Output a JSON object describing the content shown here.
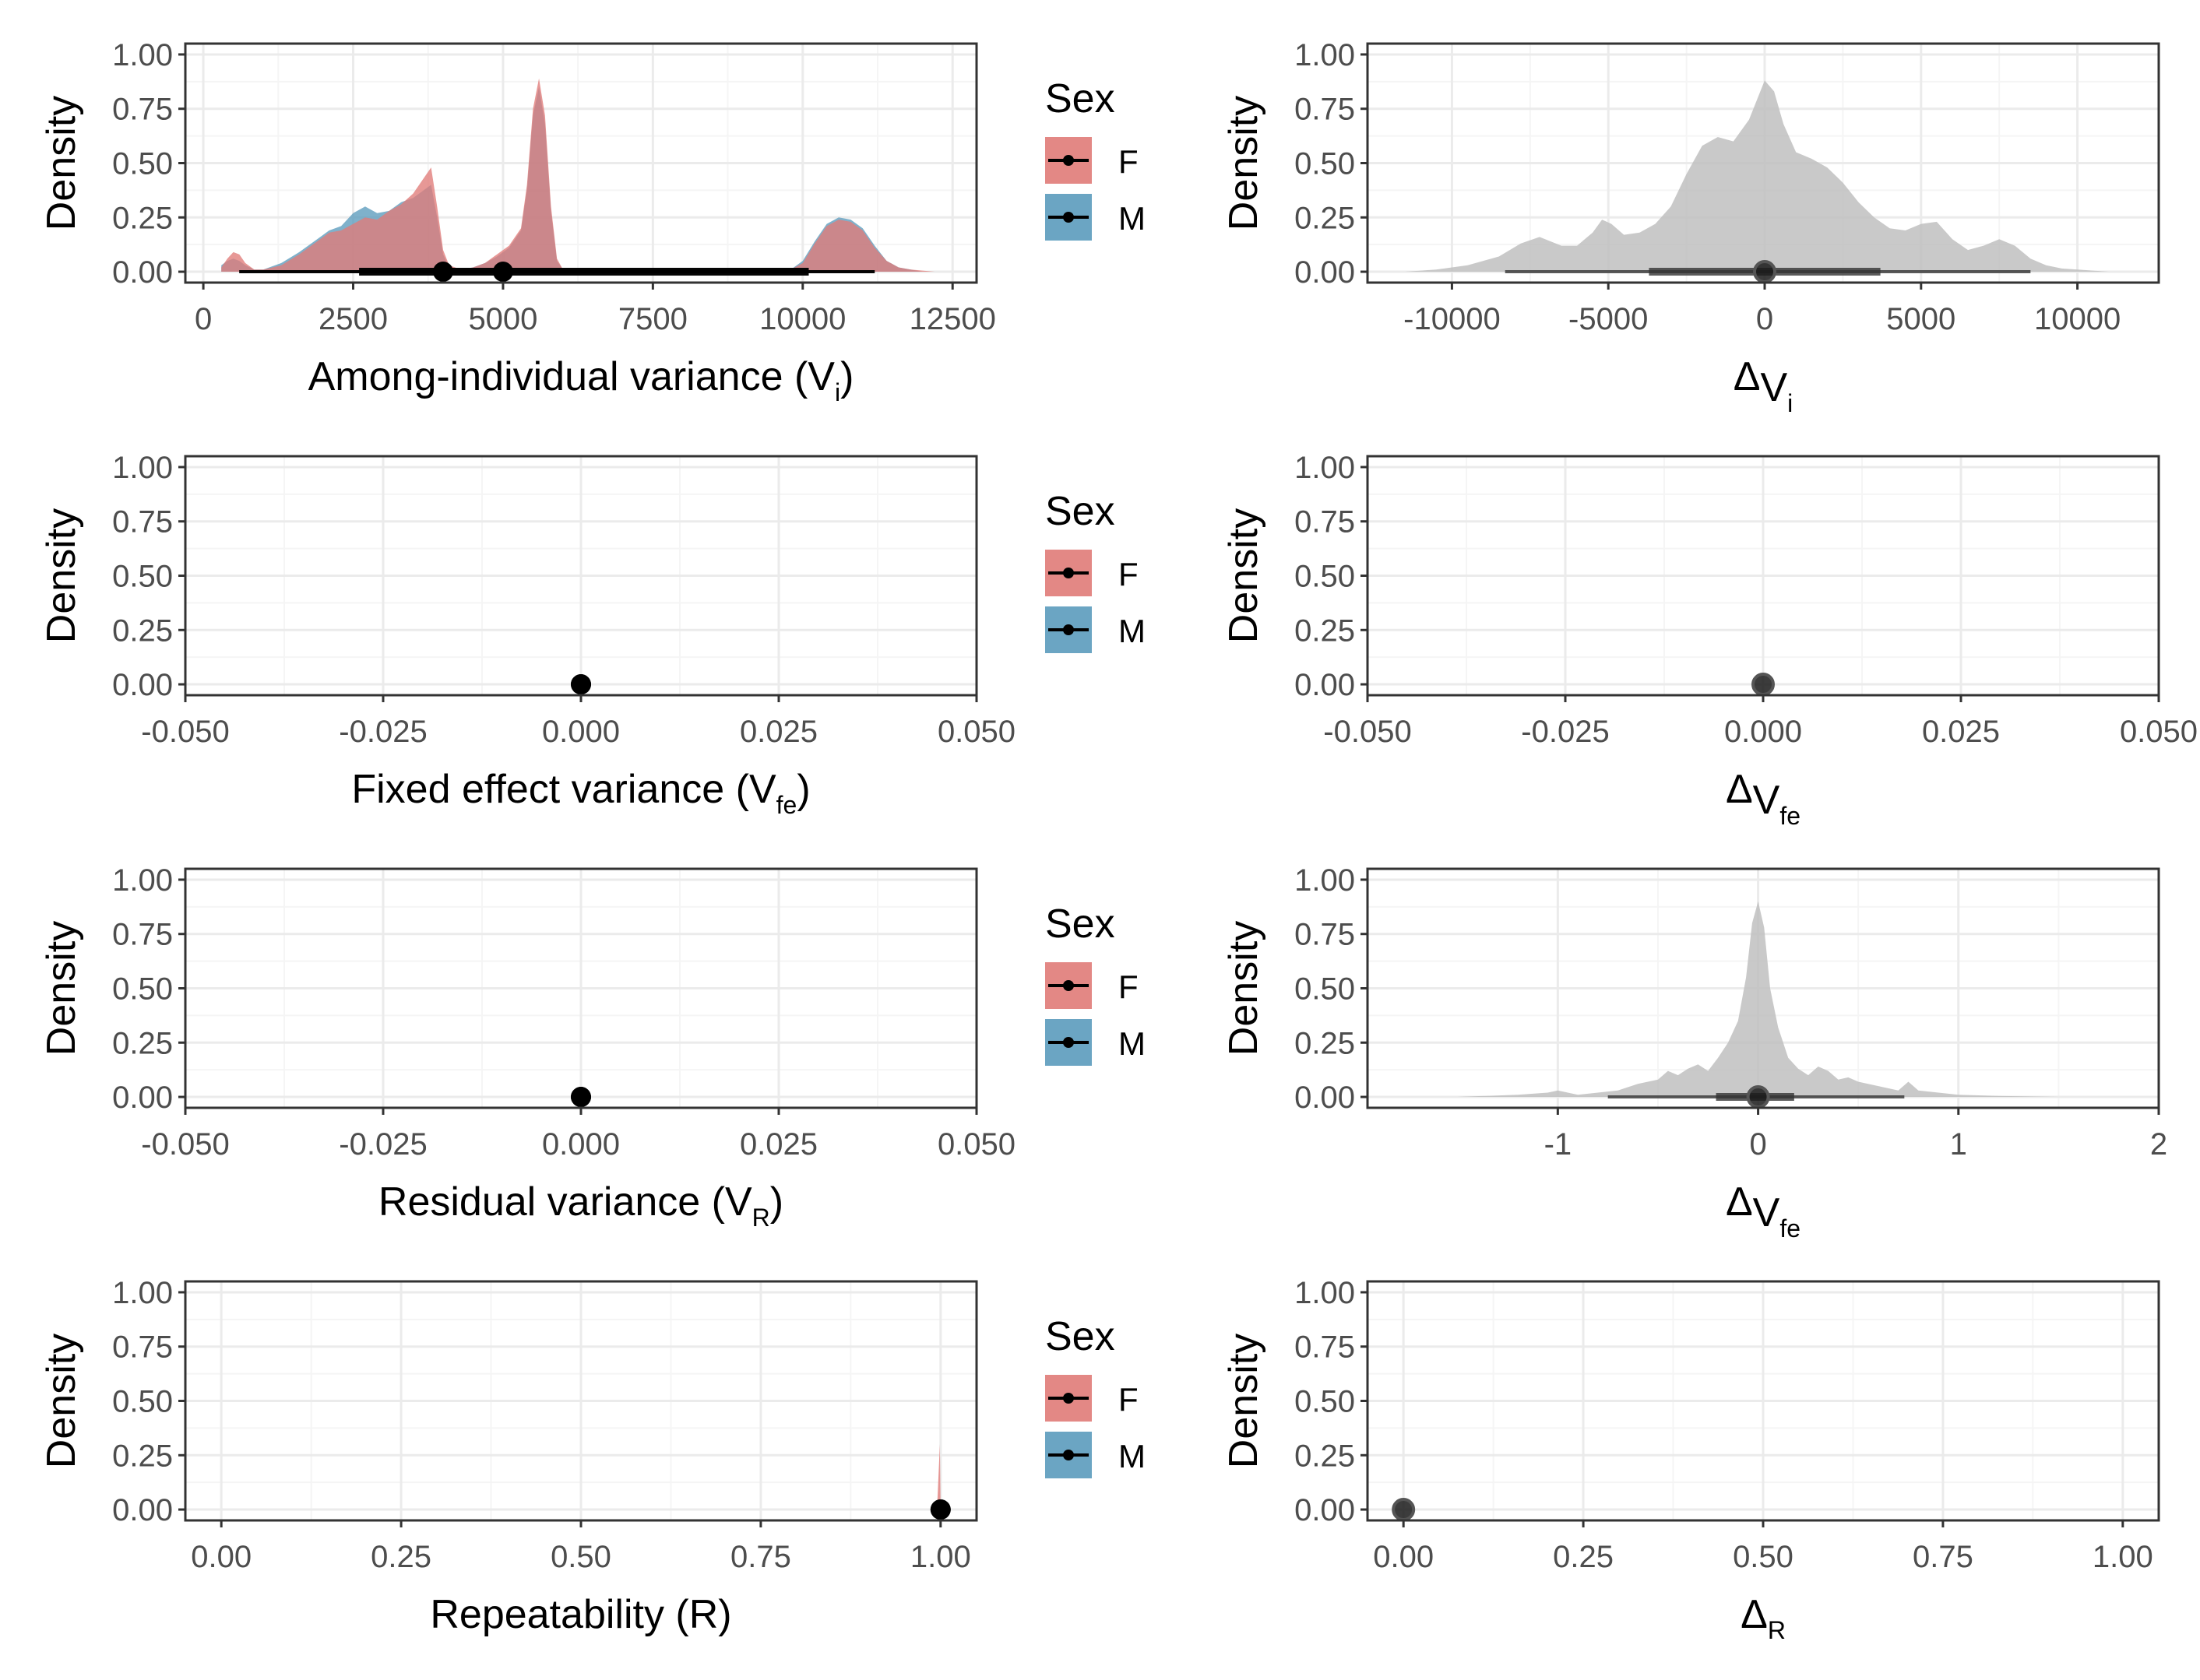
{
  "figure": {
    "y_axis_title": "Density",
    "legend": {
      "title": "Sex",
      "entries": [
        "F",
        "M"
      ]
    }
  },
  "colors": {
    "F": "#E07B78",
    "M": "#5B9BBC",
    "delta_fill": "#BDBDBD",
    "grid_major": "#EBEBEB",
    "grid_minor": "#F5F5F5",
    "panel_border": "#333333"
  },
  "chart_data": [
    {
      "id": "vi",
      "type": "area",
      "xlabel": {
        "main": "Among-individual variance (V",
        "sub": "i",
        "suffix": ")"
      },
      "ylabel": "Density",
      "xlim": [
        -300,
        12900
      ],
      "ylim": [
        -0.05,
        1.05
      ],
      "xticks": [
        0,
        2500,
        5000,
        7500,
        10000,
        12500
      ],
      "xtick_labels": [
        "0",
        "2500",
        "5000",
        "7500",
        "10000",
        "12500"
      ],
      "yticks": [
        0,
        0.25,
        0.5,
        0.75,
        1.0
      ],
      "ytick_labels": [
        "0.00",
        "0.25",
        "0.50",
        "0.75",
        "1.00"
      ],
      "legend": "right",
      "series": [
        {
          "name": "F",
          "x": [
            300,
            400,
            500,
            600,
            700,
            850,
            1000,
            1300,
            1600,
            1900,
            2100,
            2300,
            2500,
            2700,
            2900,
            3100,
            3300,
            3500,
            3700,
            3800,
            3900,
            4000,
            4100,
            4300,
            4500,
            4700,
            4900,
            5100,
            5300,
            5400,
            5500,
            5600,
            5700,
            5800,
            5900,
            6000,
            6200,
            7000,
            8000,
            9000,
            9800,
            10000,
            10200,
            10400,
            10600,
            10800,
            11000,
            11200,
            11400,
            11600,
            11800,
            12000,
            12200,
            12400,
            12500
          ],
          "y": [
            0.02,
            0.06,
            0.09,
            0.08,
            0.04,
            0.01,
            0.01,
            0.03,
            0.08,
            0.14,
            0.18,
            0.19,
            0.22,
            0.25,
            0.24,
            0.28,
            0.31,
            0.36,
            0.44,
            0.48,
            0.3,
            0.1,
            0.03,
            0.01,
            0.02,
            0.04,
            0.08,
            0.12,
            0.2,
            0.4,
            0.75,
            0.89,
            0.72,
            0.3,
            0.06,
            0.01,
            0.0,
            0.0,
            0.0,
            0.0,
            0.01,
            0.04,
            0.13,
            0.21,
            0.24,
            0.23,
            0.19,
            0.11,
            0.05,
            0.02,
            0.01,
            0.005,
            0.0,
            0.0,
            0.0
          ],
          "interval_point": 5000,
          "interval_inner": [
            2600,
            10100
          ],
          "interval_outer": [
            600,
            11200
          ]
        },
        {
          "name": "M",
          "x": [
            300,
            400,
            500,
            600,
            700,
            850,
            1000,
            1300,
            1600,
            1900,
            2100,
            2300,
            2500,
            2700,
            2900,
            3100,
            3300,
            3500,
            3700,
            3800,
            3900,
            4000,
            4100,
            4300,
            4500,
            4700,
            4900,
            5100,
            5300,
            5400,
            5500,
            5600,
            5700,
            5800,
            5900,
            6000,
            6200,
            7000,
            8000,
            9000,
            9800,
            10000,
            10200,
            10400,
            10600,
            10800,
            11000,
            11200,
            11400,
            11600,
            11800,
            12000
          ],
          "y": [
            0.03,
            0.05,
            0.06,
            0.05,
            0.03,
            0.01,
            0.01,
            0.04,
            0.09,
            0.15,
            0.19,
            0.21,
            0.27,
            0.3,
            0.27,
            0.28,
            0.32,
            0.34,
            0.38,
            0.4,
            0.25,
            0.08,
            0.02,
            0.01,
            0.02,
            0.04,
            0.07,
            0.11,
            0.19,
            0.38,
            0.72,
            0.85,
            0.68,
            0.28,
            0.05,
            0.01,
            0.0,
            0.0,
            0.0,
            0.0,
            0.01,
            0.05,
            0.14,
            0.22,
            0.25,
            0.24,
            0.2,
            0.12,
            0.05,
            0.02,
            0.01,
            0.0
          ],
          "interval_point": 4000,
          "interval_inner": [
            2600,
            10100
          ],
          "interval_outer": [
            600,
            11200
          ]
        }
      ]
    },
    {
      "id": "delta_vi",
      "type": "area",
      "xlabel": {
        "main": "Δ",
        "sub_main": "V",
        "sub": "i",
        "suffix": ""
      },
      "ylabel": "Density",
      "xlim": [
        -12700,
        12600
      ],
      "ylim": [
        -0.05,
        1.05
      ],
      "xticks": [
        -10000,
        -5000,
        0,
        5000,
        10000
      ],
      "xtick_labels": [
        "-10000",
        "-5000",
        "0",
        "5000",
        "10000"
      ],
      "yticks": [
        0,
        0.25,
        0.5,
        0.75,
        1.0
      ],
      "ytick_labels": [
        "0.00",
        "0.25",
        "0.50",
        "0.75",
        "1.00"
      ],
      "series": [
        {
          "x": [
            -11500,
            -10500,
            -9500,
            -8500,
            -7800,
            -7200,
            -6500,
            -6000,
            -5500,
            -5200,
            -4900,
            -4500,
            -4000,
            -3500,
            -3000,
            -2500,
            -2000,
            -1500,
            -1000,
            -500,
            0,
            300,
            600,
            1000,
            1500,
            2000,
            2500,
            3000,
            3500,
            4000,
            4500,
            5000,
            5500,
            6000,
            6500,
            7000,
            7500,
            8000,
            8500,
            9000,
            9500,
            10000,
            10500,
            11000
          ],
          "y": [
            0.0,
            0.01,
            0.03,
            0.07,
            0.13,
            0.16,
            0.12,
            0.12,
            0.18,
            0.24,
            0.22,
            0.17,
            0.18,
            0.22,
            0.3,
            0.45,
            0.58,
            0.62,
            0.6,
            0.7,
            0.88,
            0.83,
            0.68,
            0.55,
            0.52,
            0.48,
            0.41,
            0.32,
            0.25,
            0.2,
            0.19,
            0.22,
            0.23,
            0.15,
            0.1,
            0.12,
            0.15,
            0.12,
            0.06,
            0.03,
            0.015,
            0.01,
            0.005,
            0.0
          ],
          "interval_point": 0,
          "interval_inner": [
            -3700,
            3700
          ],
          "interval_outer": [
            -8300,
            8500
          ]
        }
      ]
    },
    {
      "id": "vfe",
      "type": "area",
      "xlabel": {
        "main": "Fixed effect variance (V",
        "sub": "fe",
        "suffix": ")"
      },
      "ylabel": "Density",
      "xlim": [
        -0.05,
        0.05
      ],
      "ylim": [
        -0.05,
        1.05
      ],
      "xticks": [
        -0.05,
        -0.025,
        0,
        0.025,
        0.05
      ],
      "xtick_labels": [
        "-0.050",
        "-0.025",
        "0.000",
        "0.025",
        "0.050"
      ],
      "yticks": [
        0,
        0.25,
        0.5,
        0.75,
        1.0
      ],
      "ytick_labels": [
        "0.00",
        "0.25",
        "0.50",
        "0.75",
        "1.00"
      ],
      "legend": "right",
      "series": [
        {
          "name": "F",
          "x": [],
          "y": [],
          "interval_point": 0,
          "interval_inner": [
            0,
            0
          ],
          "interval_outer": [
            0,
            0
          ]
        },
        {
          "name": "M",
          "x": [],
          "y": [],
          "interval_point": 0,
          "interval_inner": [
            0,
            0
          ],
          "interval_outer": [
            0,
            0
          ]
        }
      ]
    },
    {
      "id": "delta_vfe",
      "type": "area",
      "xlabel": {
        "main": "Δ",
        "sub_main": "V",
        "sub": "fe",
        "suffix": ""
      },
      "ylabel": "Density",
      "xlim": [
        -0.05,
        0.05
      ],
      "ylim": [
        -0.05,
        1.05
      ],
      "xticks": [
        -0.05,
        -0.025,
        0,
        0.025,
        0.05
      ],
      "xtick_labels": [
        "-0.050",
        "-0.025",
        "0.000",
        "0.025",
        "0.050"
      ],
      "yticks": [
        0,
        0.25,
        0.5,
        0.75,
        1.0
      ],
      "ytick_labels": [
        "0.00",
        "0.25",
        "0.50",
        "0.75",
        "1.00"
      ],
      "series": [
        {
          "x": [],
          "y": [],
          "interval_point": 0,
          "interval_inner": [
            0,
            0
          ],
          "interval_outer": [
            0,
            0
          ]
        }
      ]
    },
    {
      "id": "vr",
      "type": "area",
      "xlabel": {
        "main": "Residual variance (V",
        "sub": "R",
        "suffix": ")"
      },
      "ylabel": "Density",
      "xlim": [
        -0.05,
        0.05
      ],
      "ylim": [
        -0.05,
        1.05
      ],
      "xticks": [
        -0.05,
        -0.025,
        0,
        0.025,
        0.05
      ],
      "xtick_labels": [
        "-0.050",
        "-0.025",
        "0.000",
        "0.025",
        "0.050"
      ],
      "yticks": [
        0,
        0.25,
        0.5,
        0.75,
        1.0
      ],
      "ytick_labels": [
        "0.00",
        "0.25",
        "0.50",
        "0.75",
        "1.00"
      ],
      "legend": "right",
      "series": [
        {
          "name": "F",
          "x": [],
          "y": [],
          "interval_point": 0,
          "interval_inner": [
            0,
            0
          ],
          "interval_outer": [
            0,
            0
          ]
        },
        {
          "name": "M",
          "x": [],
          "y": [],
          "interval_point": 0,
          "interval_inner": [
            0,
            0
          ],
          "interval_outer": [
            0,
            0
          ]
        }
      ]
    },
    {
      "id": "delta_vr",
      "type": "area",
      "xlabel": {
        "main": "Δ",
        "sub_main": "V",
        "sub": "fe",
        "suffix": ""
      },
      "ylabel": "Density",
      "xlim": [
        -1.95,
        2.0
      ],
      "ylim": [
        -0.05,
        1.05
      ],
      "xticks": [
        -1,
        0,
        1,
        2
      ],
      "xtick_labels": [
        "-1",
        "0",
        "1",
        "2"
      ],
      "yticks": [
        0,
        0.25,
        0.5,
        0.75,
        1.0
      ],
      "ytick_labels": [
        "0.00",
        "0.25",
        "0.50",
        "0.75",
        "1.00"
      ],
      "series": [
        {
          "x": [
            -1.5,
            -1.2,
            -1.05,
            -1.0,
            -0.95,
            -0.9,
            -0.8,
            -0.7,
            -0.6,
            -0.5,
            -0.45,
            -0.4,
            -0.35,
            -0.3,
            -0.25,
            -0.2,
            -0.15,
            -0.1,
            -0.06,
            -0.03,
            0.0,
            0.03,
            0.06,
            0.1,
            0.15,
            0.2,
            0.25,
            0.3,
            0.35,
            0.4,
            0.45,
            0.5,
            0.6,
            0.7,
            0.75,
            0.8,
            0.9,
            1.0,
            1.2,
            1.5
          ],
          "y": [
            0.0,
            0.01,
            0.02,
            0.03,
            0.02,
            0.01,
            0.02,
            0.03,
            0.06,
            0.08,
            0.12,
            0.1,
            0.13,
            0.15,
            0.12,
            0.18,
            0.25,
            0.35,
            0.55,
            0.8,
            0.9,
            0.78,
            0.5,
            0.32,
            0.18,
            0.13,
            0.1,
            0.14,
            0.12,
            0.08,
            0.09,
            0.07,
            0.05,
            0.03,
            0.07,
            0.03,
            0.02,
            0.01,
            0.005,
            0.0
          ],
          "interval_point": 0,
          "interval_inner": [
            -0.21,
            0.18
          ],
          "interval_outer": [
            -0.75,
            0.73
          ]
        }
      ]
    },
    {
      "id": "r",
      "type": "area",
      "xlabel": {
        "main": "Repeatability (R)",
        "sub": "",
        "suffix": ""
      },
      "ylabel": "Density",
      "xlim": [
        -0.05,
        1.05
      ],
      "ylim": [
        -0.05,
        1.05
      ],
      "xticks": [
        0,
        0.25,
        0.5,
        0.75,
        1.0
      ],
      "xtick_labels": [
        "0.00",
        "0.25",
        "0.50",
        "0.75",
        "1.00"
      ],
      "yticks": [
        0,
        0.25,
        0.5,
        0.75,
        1.0
      ],
      "ytick_labels": [
        "0.00",
        "0.25",
        "0.50",
        "0.75",
        "1.00"
      ],
      "legend": "right",
      "series": [
        {
          "name": "F",
          "x": [
            0.995,
            0.999,
            1.0
          ],
          "y": [
            0.0,
            0.3,
            0.0
          ],
          "interval_point": 1.0,
          "interval_inner": [
            1.0,
            1.0
          ],
          "interval_outer": [
            1.0,
            1.0
          ]
        },
        {
          "name": "M",
          "x": [],
          "y": [],
          "interval_point": 1.0,
          "interval_inner": [
            1.0,
            1.0
          ],
          "interval_outer": [
            1.0,
            1.0
          ]
        }
      ]
    },
    {
      "id": "delta_r",
      "type": "area",
      "xlabel": {
        "main": "Δ",
        "sub": "R",
        "suffix": ""
      },
      "ylabel": "Density",
      "xlim": [
        -0.05,
        1.05
      ],
      "ylim": [
        -0.05,
        1.05
      ],
      "xticks": [
        0,
        0.25,
        0.5,
        0.75,
        1.0
      ],
      "xtick_labels": [
        "0.00",
        "0.25",
        "0.50",
        "0.75",
        "1.00"
      ],
      "yticks": [
        0,
        0.25,
        0.5,
        0.75,
        1.0
      ],
      "ytick_labels": [
        "0.00",
        "0.25",
        "0.50",
        "0.75",
        "1.00"
      ],
      "series": [
        {
          "x": [],
          "y": [],
          "interval_point": 0,
          "interval_inner": [
            0,
            0
          ],
          "interval_outer": [
            0,
            0
          ]
        }
      ]
    }
  ]
}
